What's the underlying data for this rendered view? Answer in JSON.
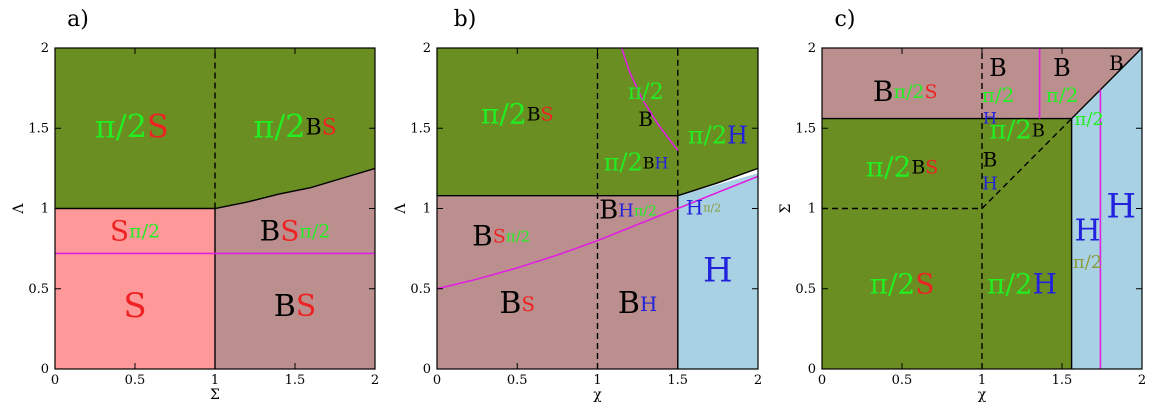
{
  "colors": {
    "green": "#6b8e23",
    "mauve": "#bc8f8f",
    "pink": "#ff9999",
    "lightblue": "#a8d1e3",
    "magenta": "#e020e0",
    "black": "#000000",
    "txt_green": "#22ee22",
    "txt_red": "#ee2222",
    "txt_blue": "#2222dd",
    "txt_olive": "#8c9a3a",
    "txt_black": "#000000"
  },
  "chart_data": [
    {
      "type": "phase-diagram",
      "panel_label": "a)",
      "xlabel": "Σ",
      "ylabel": "Λ",
      "xlim": [
        0,
        2
      ],
      "ylim": [
        0,
        2
      ],
      "xticks": [
        "0",
        "0.5",
        "1",
        "1.5",
        "2"
      ],
      "yticks": [
        "0",
        "0.5",
        "1",
        "1.5",
        "2"
      ],
      "regions": [
        {
          "color": "green",
          "points": [
            [
              0,
              1
            ],
            [
              1,
              1
            ],
            [
              1.2,
              1.04
            ],
            [
              1.4,
              1.09
            ],
            [
              1.6,
              1.13
            ],
            [
              1.8,
              1.19
            ],
            [
              2,
              1.25
            ],
            [
              2,
              2
            ],
            [
              0,
              2
            ]
          ]
        },
        {
          "color": "pink",
          "points": [
            [
              0,
              0
            ],
            [
              1,
              0
            ],
            [
              1,
              1
            ],
            [
              0,
              1
            ]
          ]
        },
        {
          "color": "mauve",
          "points": [
            [
              1,
              0
            ],
            [
              2,
              0
            ],
            [
              2,
              1.25
            ],
            [
              1.8,
              1.19
            ],
            [
              1.6,
              1.13
            ],
            [
              1.4,
              1.09
            ],
            [
              1.2,
              1.04
            ],
            [
              1,
              1
            ]
          ]
        }
      ],
      "lines": [
        {
          "color": "black",
          "points": [
            [
              1,
              0
            ],
            [
              1,
              1
            ]
          ]
        },
        {
          "color": "black",
          "points": [
            [
              0,
              1
            ],
            [
              1,
              1
            ],
            [
              1.2,
              1.04
            ],
            [
              1.4,
              1.09
            ],
            [
              1.6,
              1.13
            ],
            [
              1.8,
              1.19
            ],
            [
              2,
              1.25
            ]
          ]
        },
        {
          "color": "black",
          "dashed": true,
          "points": [
            [
              1,
              1
            ],
            [
              1,
              2
            ]
          ]
        },
        {
          "color": "magenta",
          "points": [
            [
              0,
              0.72
            ],
            [
              2,
              0.72
            ]
          ]
        }
      ],
      "labels": [
        {
          "x": 0.5,
          "y": 0.38,
          "size": 34,
          "parts": [
            {
              "t": "S",
              "c": "txt_red"
            }
          ]
        },
        {
          "x": 1.5,
          "y": 0.38,
          "size": 30,
          "parts": [
            {
              "t": "B",
              "c": "txt_black"
            },
            {
              "t": "S",
              "c": "txt_red"
            }
          ]
        },
        {
          "x": 0.5,
          "y": 0.85,
          "size": 28,
          "parts": [
            {
              "t": "S",
              "c": "txt_red"
            },
            {
              "t": "π/2",
              "c": "txt_green",
              "small": true
            }
          ]
        },
        {
          "x": 1.5,
          "y": 0.85,
          "size": 28,
          "parts": [
            {
              "t": "B",
              "c": "txt_black"
            },
            {
              "t": "S",
              "c": "txt_red"
            },
            {
              "t": "π/2",
              "c": "txt_green",
              "small": true
            }
          ]
        },
        {
          "x": 0.48,
          "y": 1.5,
          "size": 32,
          "parts": [
            {
              "t": "π/2",
              "c": "txt_green"
            },
            {
              "t": "S",
              "c": "txt_red"
            }
          ]
        },
        {
          "x": 1.5,
          "y": 1.5,
          "size": 32,
          "parts": [
            {
              "t": "π/2",
              "c": "txt_green"
            },
            {
              "t": "B",
              "c": "txt_black",
              "small": true
            },
            {
              "t": "S",
              "c": "txt_red",
              "small": true
            }
          ]
        }
      ]
    },
    {
      "type": "phase-diagram",
      "panel_label": "b)",
      "xlabel": "χ",
      "ylabel": "Λ",
      "xlim": [
        0,
        2
      ],
      "ylim": [
        0,
        2
      ],
      "xticks": [
        "0",
        "0.5",
        "1",
        "1.5",
        "2"
      ],
      "yticks": [
        "0",
        "0.5",
        "1",
        "1.5",
        "2"
      ],
      "regions": [
        {
          "color": "green",
          "points": [
            [
              0,
              1.08
            ],
            [
              1.5,
              1.08
            ],
            [
              1.75,
              1.16
            ],
            [
              2,
              1.25
            ],
            [
              2,
              2
            ],
            [
              0,
              2
            ]
          ]
        },
        {
          "color": "mauve",
          "points": [
            [
              0,
              0
            ],
            [
              1.5,
              0
            ],
            [
              1.5,
              1.08
            ],
            [
              0,
              1.08
            ]
          ]
        },
        {
          "color": "lightblue",
          "points": [
            [
              1.5,
              0
            ],
            [
              2,
              0
            ],
            [
              2,
              1.22
            ],
            [
              1.5,
              1.08
            ]
          ]
        }
      ],
      "lines": [
        {
          "color": "black",
          "points": [
            [
              0,
              1.08
            ],
            [
              1.5,
              1.08
            ],
            [
              1.75,
              1.16
            ],
            [
              2,
              1.25
            ]
          ]
        },
        {
          "color": "black",
          "points": [
            [
              1.5,
              0
            ],
            [
              1.5,
              1.08
            ]
          ]
        },
        {
          "color": "black",
          "dashed": true,
          "points": [
            [
              1,
              0
            ],
            [
              1,
              2
            ]
          ]
        },
        {
          "color": "black",
          "dashed": true,
          "points": [
            [
              1.5,
              1.08
            ],
            [
              1.5,
              2
            ]
          ]
        },
        {
          "color": "magenta",
          "points": [
            [
              0,
              0.5
            ],
            [
              0.25,
              0.56
            ],
            [
              0.5,
              0.63
            ],
            [
              0.75,
              0.71
            ],
            [
              1,
              0.8
            ],
            [
              1.25,
              0.9
            ],
            [
              1.5,
              1.0
            ],
            [
              1.75,
              1.1
            ],
            [
              2,
              1.2
            ]
          ]
        },
        {
          "color": "magenta",
          "points": [
            [
              1.15,
              2
            ],
            [
              1.2,
              1.85
            ],
            [
              1.28,
              1.68
            ],
            [
              1.38,
              1.52
            ],
            [
              1.5,
              1.36
            ]
          ]
        }
      ],
      "labels": [
        {
          "x": 0.5,
          "y": 1.58,
          "size": 28,
          "parts": [
            {
              "t": "π/2",
              "c": "txt_green"
            },
            {
              "t": "B",
              "c": "txt_black",
              "small": true
            },
            {
              "t": "S",
              "c": "txt_red",
              "small": true
            }
          ]
        },
        {
          "x": 1.3,
          "y": 1.72,
          "size": 22,
          "parts": [
            {
              "t": "π/2",
              "c": "txt_green"
            }
          ]
        },
        {
          "x": 1.3,
          "y": 1.55,
          "size": 20,
          "parts": [
            {
              "t": "B",
              "c": "txt_black"
            }
          ]
        },
        {
          "x": 1.24,
          "y": 1.28,
          "size": 24,
          "parts": [
            {
              "t": "π/2",
              "c": "txt_green"
            },
            {
              "t": "B",
              "c": "txt_black",
              "small": true
            },
            {
              "t": "H",
              "c": "txt_blue",
              "small": true
            }
          ]
        },
        {
          "x": 1.75,
          "y": 1.45,
          "size": 24,
          "parts": [
            {
              "t": "π/2",
              "c": "txt_green"
            },
            {
              "t": "H",
              "c": "txt_blue"
            }
          ]
        },
        {
          "x": 0.4,
          "y": 0.82,
          "size": 28,
          "parts": [
            {
              "t": "B",
              "c": "txt_black"
            },
            {
              "t": "S",
              "c": "txt_red",
              "small": true
            },
            {
              "t": "π/2",
              "c": "txt_green",
              "tiny": true
            }
          ]
        },
        {
          "x": 1.19,
          "y": 0.98,
          "size": 26,
          "parts": [
            {
              "t": "B",
              "c": "txt_black"
            },
            {
              "t": "H",
              "c": "txt_blue",
              "small": true
            },
            {
              "t": "π/2",
              "c": "txt_green",
              "tiny": true
            }
          ]
        },
        {
          "x": 1.66,
          "y": 1.0,
          "size": 20,
          "parts": [
            {
              "t": "H",
              "c": "txt_blue"
            },
            {
              "t": "π/2",
              "c": "txt_olive",
              "tiny": true
            }
          ]
        },
        {
          "x": 0.5,
          "y": 0.4,
          "size": 30,
          "parts": [
            {
              "t": "B",
              "c": "txt_black"
            },
            {
              "t": "S",
              "c": "txt_red",
              "small": true
            }
          ]
        },
        {
          "x": 1.25,
          "y": 0.4,
          "size": 30,
          "parts": [
            {
              "t": "B",
              "c": "txt_black"
            },
            {
              "t": "H",
              "c": "txt_blue",
              "small": true
            }
          ]
        },
        {
          "x": 1.75,
          "y": 0.6,
          "size": 34,
          "parts": [
            {
              "t": "H",
              "c": "txt_blue"
            }
          ]
        }
      ]
    },
    {
      "type": "phase-diagram",
      "panel_label": "c)",
      "xlabel": "χ",
      "ylabel": "Σ",
      "xlim": [
        0,
        2
      ],
      "ylim": [
        0,
        2
      ],
      "xticks": [
        "0",
        "0.5",
        "1",
        "1.5",
        "2"
      ],
      "yticks": [
        "0",
        "0.5",
        "1",
        "1.5",
        "2"
      ],
      "regions": [
        {
          "color": "mauve",
          "points": [
            [
              0,
              1.56
            ],
            [
              1.56,
              1.56
            ],
            [
              2,
              2
            ],
            [
              0,
              2
            ]
          ]
        },
        {
          "color": "green",
          "points": [
            [
              0,
              0
            ],
            [
              1.56,
              0
            ],
            [
              1.56,
              1.56
            ],
            [
              0,
              1.56
            ]
          ]
        },
        {
          "color": "lightblue",
          "points": [
            [
              1.56,
              0
            ],
            [
              2,
              0
            ],
            [
              2,
              2
            ],
            [
              1.56,
              1.56
            ]
          ]
        }
      ],
      "lines": [
        {
          "color": "black",
          "points": [
            [
              0,
              1.56
            ],
            [
              1.56,
              1.56
            ],
            [
              2,
              2
            ]
          ]
        },
        {
          "color": "black",
          "points": [
            [
              1.56,
              0
            ],
            [
              1.56,
              1.56
            ]
          ]
        },
        {
          "color": "black",
          "dashed": true,
          "points": [
            [
              1,
              0
            ],
            [
              1,
              2
            ]
          ]
        },
        {
          "color": "black",
          "dashed": true,
          "points": [
            [
              0,
              1
            ],
            [
              1,
              1
            ],
            [
              1.56,
              1.56
            ]
          ]
        },
        {
          "color": "magenta",
          "points": [
            [
              1.36,
              2
            ],
            [
              1.36,
              1.56
            ]
          ]
        },
        {
          "color": "magenta",
          "points": [
            [
              1.74,
              0
            ],
            [
              1.74,
              1.74
            ]
          ]
        }
      ],
      "labels": [
        {
          "x": 0.52,
          "y": 1.72,
          "size": 28,
          "parts": [
            {
              "t": "B",
              "c": "txt_black"
            },
            {
              "t": "π/2",
              "c": "txt_green",
              "small": true
            },
            {
              "t": "S",
              "c": "txt_red",
              "small": true
            }
          ]
        },
        {
          "x": 1.1,
          "y": 1.87,
          "size": 24,
          "parts": [
            {
              "t": "B",
              "c": "txt_black"
            }
          ]
        },
        {
          "x": 1.1,
          "y": 1.7,
          "size": 20,
          "parts": [
            {
              "t": "π/2",
              "c": "txt_green"
            }
          ]
        },
        {
          "x": 1.05,
          "y": 1.56,
          "size": 16,
          "parts": [
            {
              "t": "H",
              "c": "txt_blue"
            }
          ]
        },
        {
          "x": 1.5,
          "y": 1.87,
          "size": 24,
          "parts": [
            {
              "t": "B",
              "c": "txt_black"
            }
          ]
        },
        {
          "x": 1.5,
          "y": 1.7,
          "size": 20,
          "parts": [
            {
              "t": "π/2",
              "c": "txt_green"
            }
          ]
        },
        {
          "x": 1.84,
          "y": 1.9,
          "size": 20,
          "parts": [
            {
              "t": "B",
              "c": "txt_black"
            }
          ]
        },
        {
          "x": 1.67,
          "y": 1.55,
          "size": 18,
          "parts": [
            {
              "t": "π/2",
              "c": "txt_green"
            }
          ]
        },
        {
          "x": 0.5,
          "y": 1.25,
          "size": 28,
          "parts": [
            {
              "t": "π/2",
              "c": "txt_green"
            },
            {
              "t": "B",
              "c": "txt_black",
              "small": true
            },
            {
              "t": "S",
              "c": "txt_red",
              "small": true
            }
          ]
        },
        {
          "x": 1.22,
          "y": 1.48,
          "size": 26,
          "parts": [
            {
              "t": "π/2",
              "c": "txt_green"
            },
            {
              "t": "B",
              "c": "txt_black",
              "small": true
            }
          ]
        },
        {
          "x": 1.05,
          "y": 1.3,
          "size": 20,
          "parts": [
            {
              "t": "B",
              "c": "txt_black"
            }
          ]
        },
        {
          "x": 1.05,
          "y": 1.15,
          "size": 18,
          "parts": [
            {
              "t": "H",
              "c": "txt_blue"
            }
          ]
        },
        {
          "x": 0.5,
          "y": 0.52,
          "size": 28,
          "parts": [
            {
              "t": "π/2",
              "c": "txt_green"
            },
            {
              "t": "S",
              "c": "txt_red"
            }
          ]
        },
        {
          "x": 1.25,
          "y": 0.52,
          "size": 28,
          "parts": [
            {
              "t": "π/2",
              "c": "txt_green"
            },
            {
              "t": "H",
              "c": "txt_blue"
            }
          ]
        },
        {
          "x": 1.66,
          "y": 0.85,
          "size": 30,
          "parts": [
            {
              "t": "H",
              "c": "txt_blue"
            }
          ]
        },
        {
          "x": 1.66,
          "y": 0.66,
          "size": 18,
          "parts": [
            {
              "t": "π/2",
              "c": "txt_olive"
            }
          ]
        },
        {
          "x": 1.87,
          "y": 1.0,
          "size": 34,
          "parts": [
            {
              "t": "H",
              "c": "txt_blue"
            }
          ]
        }
      ]
    }
  ]
}
